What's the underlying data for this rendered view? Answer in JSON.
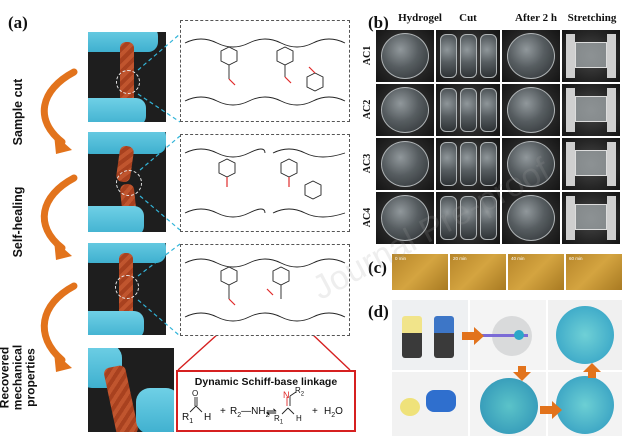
{
  "panel_a": {
    "label": "(a)",
    "side_labels": [
      "Sample cut",
      "Self-healing",
      "Recovered mechanical properties"
    ],
    "schiff_box": {
      "title": "Dynamic Schiff-base linkage",
      "reactant_1_sub": "R",
      "reactant_1_subscript": "1",
      "plus_1": "+",
      "amine": "R",
      "amine_sub": "2",
      "amine_group": "—NH",
      "amine_group_sub": "2",
      "arrow": "⇌",
      "product_r2": "R",
      "product_r2_sub": "2",
      "product_n": "N",
      "product_r1": "R",
      "product_r1_sub": "1",
      "product_h": "H",
      "product_o_label": "O",
      "aldehyde_h": "H",
      "plus_2": "+",
      "water": "H",
      "water_sub": "2",
      "water_o": "O"
    }
  },
  "panel_b": {
    "label": "(b)",
    "columns": [
      "Hydrogel",
      "Cut",
      "After 2 h",
      "Stretching"
    ],
    "rows": [
      "AC1",
      "AC2",
      "AC3",
      "AC4"
    ]
  },
  "panel_c": {
    "label": "(c)",
    "timestamps": [
      "0 min",
      "20 min",
      "40 min",
      "60 min"
    ]
  },
  "panel_d": {
    "label": "(d)"
  },
  "watermark": "Journal Pre-proof",
  "colors": {
    "arrow_orange": "#e2731c",
    "link_cyan": "#33b5d9",
    "schiff_red": "#d62020",
    "bond_red": "#e02a2a"
  }
}
